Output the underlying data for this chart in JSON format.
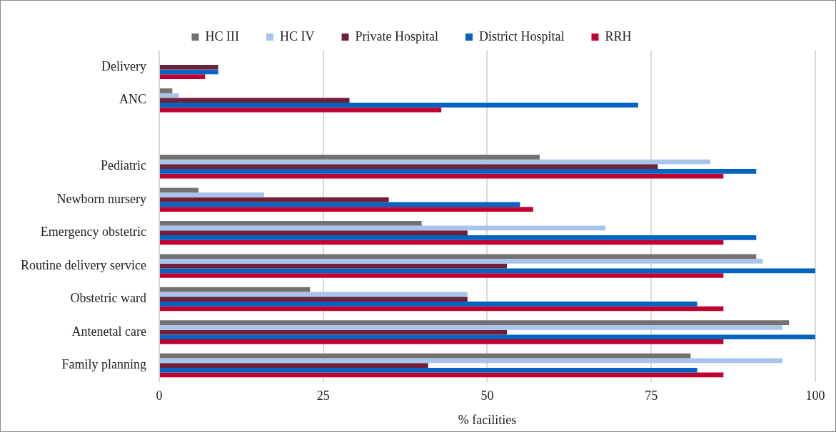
{
  "chart_data": {
    "type": "bar",
    "orientation": "horizontal",
    "xlabel": "% facilities",
    "categories": [
      "Delivery",
      "ANC",
      null,
      "Pediatric",
      "Newborn nursery",
      "Emergency obstetric",
      "Routine delivery service",
      "Obstetric ward",
      "Antenetal care",
      "Family planning"
    ],
    "series": [
      {
        "name": "HC III",
        "color": "#767171",
        "values": [
          null,
          2,
          null,
          58,
          6,
          40,
          91,
          23,
          96,
          81
        ]
      },
      {
        "name": "HC IV",
        "color": "#a9c4eb",
        "values": [
          null,
          3,
          null,
          84,
          16,
          68,
          92,
          47,
          95,
          95
        ]
      },
      {
        "name": "Private Hospital",
        "color": "#70213a",
        "values": [
          9,
          29,
          null,
          76,
          35,
          47,
          53,
          47,
          53,
          41
        ]
      },
      {
        "name": "District Hospital",
        "color": "#0563c1",
        "values": [
          9,
          73,
          null,
          91,
          55,
          91,
          100,
          82,
          100,
          82
        ]
      },
      {
        "name": "RRH",
        "color": "#c00030",
        "values": [
          7,
          43,
          null,
          86,
          57,
          86,
          86,
          86,
          86,
          86
        ]
      }
    ],
    "xlim": [
      0,
      100
    ],
    "xticks": [
      0,
      25,
      50,
      75,
      100
    ],
    "grid": "x",
    "legend": "top"
  }
}
